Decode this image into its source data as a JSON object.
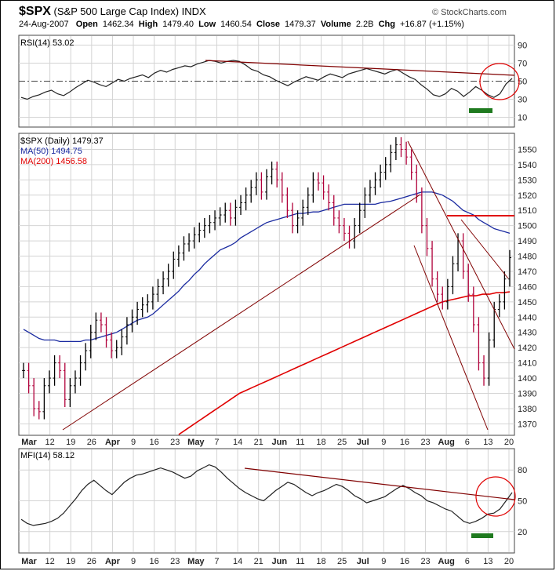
{
  "header": {
    "symbol": "$SPX",
    "name": "(S&P 500 Large Cap Index) INDX",
    "date": "24-Aug-2007",
    "open_label": "Open",
    "open": "1462.34",
    "high_label": "High",
    "high": "1479.40",
    "low_label": "Low",
    "low": "1460.54",
    "close_label": "Close",
    "close": "1479.37",
    "volume_label": "Volume",
    "volume": "2.2B",
    "chg_label": "Chg",
    "chg": "+16.87 (+1.15%)",
    "brand": "© StockCharts.com"
  },
  "colors": {
    "price_bar_up": "#000000",
    "price_bar_down": "#b0003a",
    "ma50": "#1a2aa0",
    "ma200": "#e00000",
    "trendline": "#800000",
    "annotation_red": "#e00000",
    "annotation_green": "#1f7a1f",
    "grid": "#d4d4d4",
    "overbought_fill": "#3a8a3a"
  },
  "chart_data": [
    {
      "type": "line",
      "panel": "top",
      "title": "RSI(14) 53.02",
      "series_name": "RSI(14)",
      "last_value": "53.02",
      "y_ticks": [
        "90",
        "70",
        "50",
        "30",
        "10"
      ],
      "ylim": [
        0,
        100
      ],
      "grid": true,
      "values": [
        32,
        30,
        33,
        35,
        38,
        40,
        36,
        34,
        38,
        43,
        47,
        51,
        49,
        46,
        44,
        48,
        52,
        50,
        53,
        55,
        57,
        54,
        59,
        62,
        60,
        63,
        65,
        67,
        66,
        69,
        71,
        73,
        72,
        70,
        72,
        73,
        72,
        68,
        63,
        61,
        57,
        55,
        51,
        48,
        45,
        49,
        52,
        55,
        53,
        51,
        55,
        58,
        56,
        54,
        58,
        60,
        62,
        64,
        62,
        60,
        58,
        61,
        63,
        59,
        55,
        52,
        46,
        41,
        35,
        33,
        36,
        42,
        39,
        33,
        38,
        44,
        40,
        35,
        32,
        36,
        47,
        53
      ]
    },
    {
      "type": "ohlc",
      "panel": "main",
      "title": "$SPX (Daily) 1479.37",
      "series": [
        {
          "name": "$SPX (Daily)",
          "last": "1479.37"
        },
        {
          "name": "MA(50)",
          "last": "1494.75"
        },
        {
          "name": "MA(200)",
          "last": "1456.58"
        }
      ],
      "y_ticks": [
        "1550",
        "1540",
        "1530",
        "1520",
        "1510",
        "1500",
        "1490",
        "1480",
        "1470",
        "1460",
        "1450",
        "1440",
        "1430",
        "1420",
        "1410",
        "1400",
        "1390",
        "1380",
        "1370"
      ],
      "ylim": [
        1363,
        1560
      ],
      "x_ticks": [
        "Mar",
        "12",
        "19",
        "26",
        "Apr",
        "9",
        "16",
        "23",
        "May",
        "7",
        "14",
        "21",
        "Jun",
        "11",
        "18",
        "25",
        "Jul",
        "9",
        "16",
        "23",
        "Aug",
        "6",
        "13",
        "20"
      ],
      "grid": true,
      "close": [
        1405,
        1395,
        1380,
        1378,
        1395,
        1400,
        1410,
        1405,
        1386,
        1395,
        1400,
        1410,
        1418,
        1430,
        1438,
        1435,
        1425,
        1418,
        1420,
        1427,
        1435,
        1440,
        1445,
        1448,
        1450,
        1455,
        1460,
        1465,
        1470,
        1478,
        1482,
        1488,
        1490,
        1494,
        1497,
        1500,
        1502,
        1505,
        1507,
        1510,
        1505,
        1512,
        1515,
        1520,
        1525,
        1530,
        1522,
        1532,
        1537,
        1530,
        1520,
        1510,
        1500,
        1505,
        1512,
        1520,
        1530,
        1528,
        1522,
        1515,
        1505,
        1500,
        1495,
        1490,
        1500,
        1510,
        1520,
        1525,
        1530,
        1535,
        1540,
        1548,
        1553,
        1550,
        1545,
        1535,
        1520,
        1500,
        1485,
        1465,
        1455,
        1450,
        1460,
        1475,
        1490,
        1470,
        1455,
        1435,
        1410,
        1400,
        1425,
        1445,
        1450,
        1465,
        1479
      ],
      "ma50": [
        1432,
        1430,
        1428,
        1426,
        1425,
        1425,
        1425,
        1424,
        1424,
        1424,
        1424,
        1425,
        1425,
        1426,
        1427,
        1428,
        1429,
        1430,
        1432,
        1434,
        1436,
        1438,
        1440,
        1442,
        1445,
        1448,
        1451,
        1454,
        1457,
        1461,
        1464,
        1468,
        1471,
        1475,
        1478,
        1481,
        1484,
        1487,
        1489,
        1492,
        1494,
        1496,
        1498,
        1500,
        1502,
        1503,
        1504,
        1505,
        1506,
        1507,
        1508,
        1508,
        1509,
        1509,
        1510,
        1511,
        1512,
        1513,
        1514,
        1514,
        1514,
        1514,
        1514,
        1514,
        1514,
        1515,
        1516,
        1517,
        1518,
        1519,
        1520,
        1521,
        1522,
        1522,
        1522,
        1521,
        1520,
        1518,
        1516,
        1513,
        1510,
        1507,
        1504,
        1502,
        1500,
        1498,
        1497,
        1496,
        1495
      ],
      "ma200_start_index": 30,
      "ma200": [
        1363,
        1366,
        1369,
        1372,
        1375,
        1378,
        1381,
        1384,
        1387,
        1390,
        1392,
        1394,
        1396,
        1398,
        1400,
        1402,
        1404,
        1406,
        1408,
        1410,
        1412,
        1414,
        1416,
        1418,
        1420,
        1422,
        1424,
        1426,
        1428,
        1430,
        1432,
        1434,
        1436,
        1438,
        1440,
        1442,
        1444,
        1446,
        1448,
        1450,
        1451,
        1452,
        1453,
        1454,
        1454,
        1455,
        1455,
        1456,
        1456,
        1456.58
      ]
    },
    {
      "type": "line",
      "panel": "bottom",
      "title": "MFI(14) 58.12",
      "series_name": "MFI(14)",
      "last_value": "58.12",
      "y_ticks": [
        "80",
        "50",
        "20"
      ],
      "ylim": [
        0,
        100
      ],
      "grid": true,
      "values": [
        32,
        28,
        26,
        27,
        28,
        30,
        33,
        38,
        45,
        52,
        60,
        66,
        70,
        65,
        60,
        56,
        62,
        68,
        72,
        75,
        76,
        78,
        80,
        82,
        80,
        78,
        75,
        72,
        74,
        79,
        82,
        85,
        83,
        78,
        72,
        67,
        62,
        58,
        55,
        52,
        50,
        55,
        60,
        64,
        68,
        66,
        62,
        58,
        55,
        58,
        60,
        63,
        66,
        64,
        60,
        55,
        52,
        48,
        50,
        52,
        54,
        58,
        62,
        65,
        62,
        58,
        55,
        50,
        48,
        45,
        42,
        40,
        35,
        30,
        28,
        30,
        33,
        37,
        38,
        42,
        50,
        58
      ]
    }
  ]
}
